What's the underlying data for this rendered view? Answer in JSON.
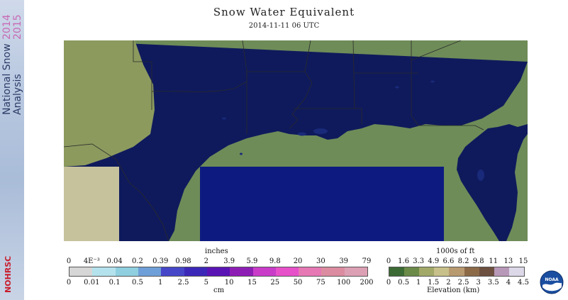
{
  "sidebar": {
    "line1": "National Snow",
    "line2": "Analysis",
    "year1": "2014",
    "year2": "2015",
    "org": "NOHRSC"
  },
  "header": {
    "title": "Snow Water Equivalent",
    "subtitle": "2014-11-11 06 UTC"
  },
  "swe_legend": {
    "unit_top": "inches",
    "unit_bottom": "cm",
    "inches": [
      "0",
      "4E⁻³",
      "0.04",
      "0.2",
      "0.39",
      "0.98",
      "2",
      "3.9",
      "5.9",
      "9.8",
      "20",
      "30",
      "39",
      "79"
    ],
    "cm": [
      "0",
      "0.01",
      "0.1",
      "0.5",
      "1",
      "2.5",
      "5",
      "10",
      "15",
      "25",
      "50",
      "75",
      "100",
      "200"
    ],
    "colors": [
      "#d6d6d6",
      "#b4e2ec",
      "#8fcfe0",
      "#6f9fd8",
      "#4646c8",
      "#3c28b8",
      "#5a14b4",
      "#8c1eb4",
      "#c83cc8",
      "#e650c8",
      "#e678b4",
      "#dc8ca0",
      "#dca0b4"
    ]
  },
  "elev_legend": {
    "unit_top": "1000s of ft",
    "unit_bottom": "Elevation (km)",
    "ft": [
      "0",
      "1.6",
      "3.3",
      "4.9",
      "6.6",
      "8.2",
      "9.8",
      "11",
      "13",
      "15"
    ],
    "km": [
      "0",
      "0.5",
      "1",
      "1.5",
      "2",
      "2.5",
      "3",
      "3.5",
      "4",
      "4.5"
    ],
    "colors": [
      "#3c6a34",
      "#6b8a48",
      "#a2a868",
      "#c8c08a",
      "#b89a70",
      "#8c6a48",
      "#6e5040",
      "#b898b8",
      "#dcd8e8"
    ]
  },
  "logo": {
    "text": "NOAA"
  },
  "map": {
    "land": "#6e8c58",
    "land_high": "#8c9a5e",
    "ocean": "#0f1a5c",
    "nodata": "#c6c29c",
    "gulf_box": "#0d1b80"
  }
}
